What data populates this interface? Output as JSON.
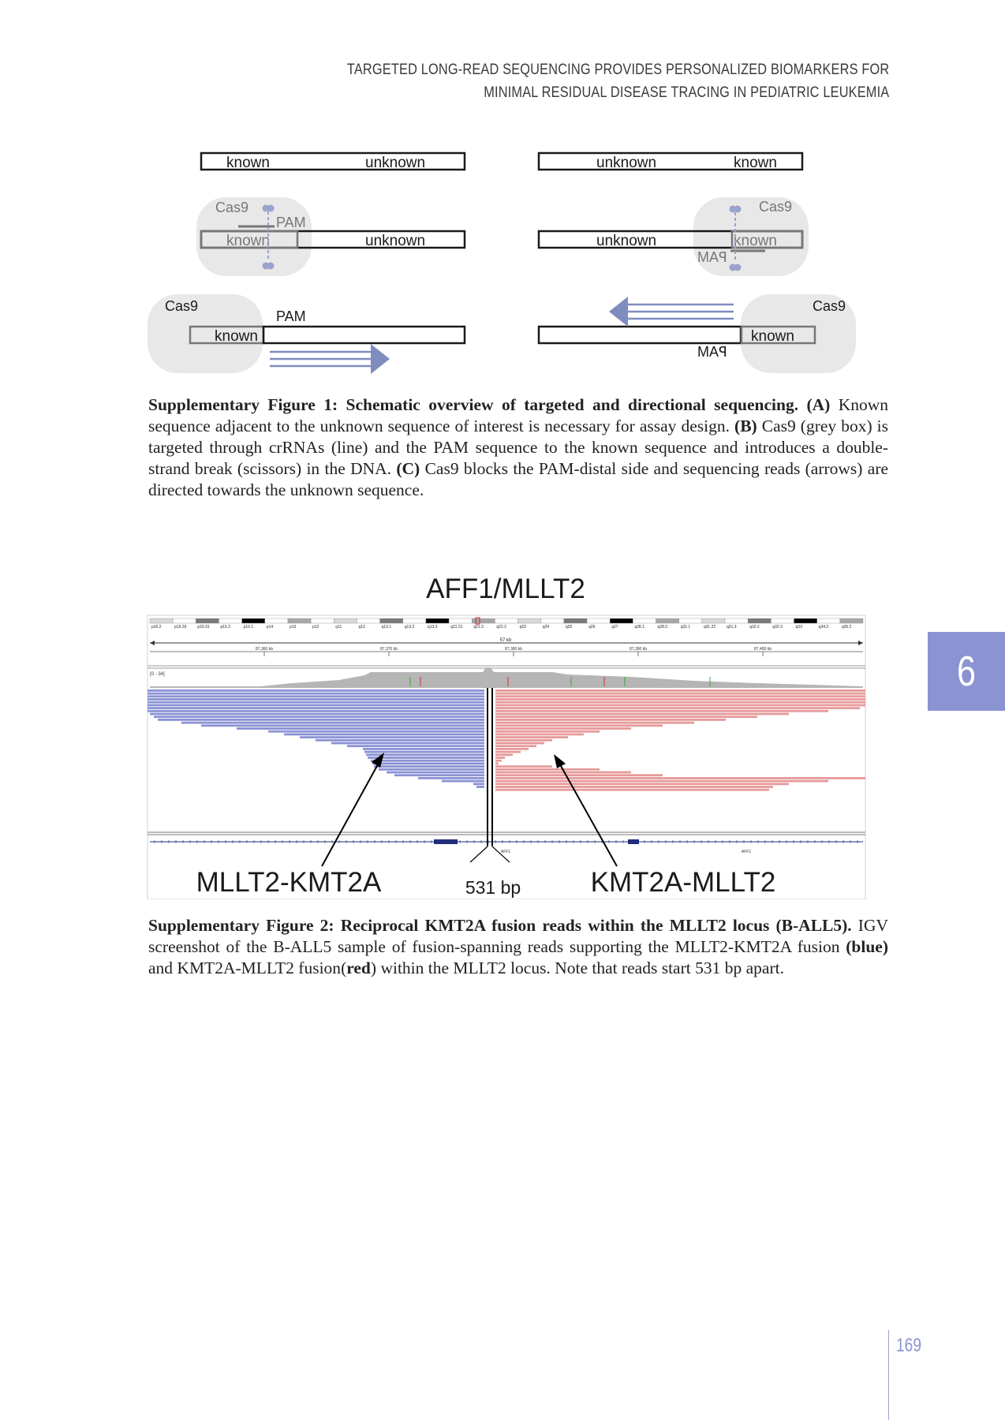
{
  "header": {
    "line1": "Targeted long-read sequencing provides personalized biomarkers for",
    "line2": "minimal residual disease tracing in pediatric leukemia"
  },
  "figure1": {
    "known": "known",
    "unknown": "unknown",
    "cas9": "Cas9",
    "pam": "PAM",
    "pam_reversed": "MAꟼ"
  },
  "caption1": {
    "label": "Supplementary Figure 1: Schematic overview of targeted and directional sequencing.",
    "a_label": "(A)",
    "a_text": "Known sequence adjacent to the unknown sequence of interest is necessary for assay design.",
    "b_label": "(B)",
    "b_text": "Cas9 (grey box) is targeted through crRNAs (line) and the PAM sequence to the known sequence and introduces a double-strand break (scissors) in the DNA.",
    "c_label": "(C)",
    "c_text": "Cas9 blocks the PAM-distal side and sequencing reads (arrows) are directed towards the unknown sequence."
  },
  "figure2": {
    "title": "AFF1/MLLT2",
    "label_left": "MLLT2-KMT2A",
    "label_right": "KMT2A-MLLT2",
    "gap_label": "531 bp",
    "ideogram_bands": [
      "p16.2",
      "p15.33",
      "p15.31",
      "p15.2",
      "p15.1",
      "p14",
      "p13",
      "p12",
      "q11",
      "q12",
      "q13.1",
      "q13.2",
      "q13.3",
      "q21.21",
      "q21.3",
      "q22.2",
      "q23",
      "q24",
      "q25",
      "q26",
      "q27",
      "q28.1",
      "q28.3",
      "q31.1",
      "q31.22",
      "q31.3",
      "q32.2",
      "q32.3",
      "q33",
      "q34.2",
      "q35.2"
    ],
    "ruler_span": "57 kb",
    "ruler_ticks": [
      "87,360 kb",
      "87,370 kb",
      "87,380 kb",
      "87,390 kb",
      "87,400 kb"
    ],
    "coverage_range": "[0 - 34]",
    "gene_labels": [
      "AFF1",
      "AFF1"
    ],
    "colors": {
      "blue_reads": "#8a92d4",
      "red_reads": "#e79a9a",
      "coverage": "#b5b5b5"
    }
  },
  "caption2": {
    "label": "Supplementary Figure 2: Reciprocal KMT2A fusion reads within the MLLT2 locus (B-ALL5).",
    "text_a": "IGV screenshot of the B-ALL5 sample of fusion-spanning reads supporting the MLLT2-KMT2A fusion",
    "blue": "(blue)",
    "text_b": "and KMT2A-MLLT2 fusion",
    "red_open": "(",
    "red": "red",
    "red_close": ")",
    "text_c": "within the MLLT2 locus. Note that reads start 531 bp apart."
  },
  "chapter_tab": "6",
  "page_number": "169"
}
